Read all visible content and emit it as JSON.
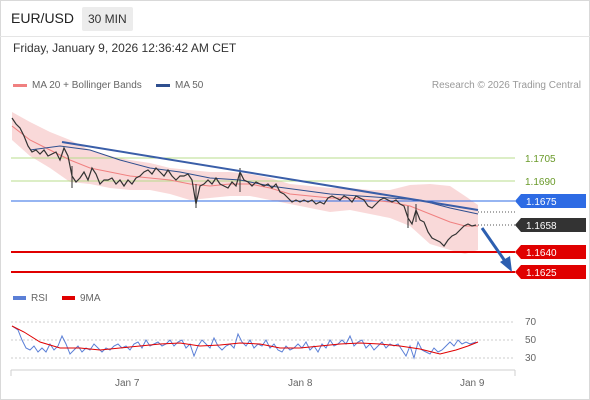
{
  "header": {
    "pair": "EUR/USD",
    "timeframe": "30 MIN"
  },
  "datetime": "Friday, January 9, 2026 12:36:42 AM CET",
  "legend": {
    "ma20": {
      "label": "MA 20 + Bollinger Bands",
      "color": "#f08080"
    },
    "ma50": {
      "label": "MA 50",
      "color": "#2f4f8f"
    }
  },
  "research": "Research © 2026 Trading Central",
  "levels": [
    {
      "value": "1.1705",
      "kind": "resistance-minor",
      "color": "#a8d080"
    },
    {
      "value": "1.1690",
      "kind": "resistance-minor",
      "color": "#a8d080"
    },
    {
      "value": "1.1675",
      "kind": "pivot",
      "color": "#2d6be4"
    },
    {
      "value": "1.1658",
      "kind": "last-price",
      "color": "#333333"
    },
    {
      "value": "1.1640",
      "kind": "support",
      "color": "#e00000"
    },
    {
      "value": "1.1625",
      "kind": "support",
      "color": "#e00000"
    }
  ],
  "rsi_legend": {
    "rsi": {
      "label": "RSI",
      "color": "#5b7fd6"
    },
    "ma9": {
      "label": "9MA",
      "color": "#e00000"
    }
  },
  "rsi_axis": [
    "70",
    "50",
    "30"
  ],
  "x_axis": [
    "Jan 7",
    "Jan 8",
    "Jan 9"
  ],
  "chart_data": {
    "type": "line",
    "title": "",
    "y_ticks": [
      1.1705,
      1.169,
      1.1675,
      1.1658,
      1.164,
      1.1625
    ],
    "x_ticks": [
      "Jan 7",
      "Jan 8",
      "Jan 9"
    ],
    "price_close_approx": [
      1.172,
      1.1712,
      1.17,
      1.1698,
      1.17,
      1.1695,
      1.1692,
      1.1688,
      1.169,
      1.1686,
      1.1684,
      1.169,
      1.1692,
      1.1688,
      1.1683,
      1.1685,
      1.1686,
      1.1684,
      1.168,
      1.1678,
      1.1679,
      1.1677,
      1.1678,
      1.1676,
      1.1677,
      1.1675,
      1.166,
      1.1652,
      1.165,
      1.1652,
      1.1656,
      1.1658
    ],
    "rsi_range": [
      30,
      70
    ]
  }
}
